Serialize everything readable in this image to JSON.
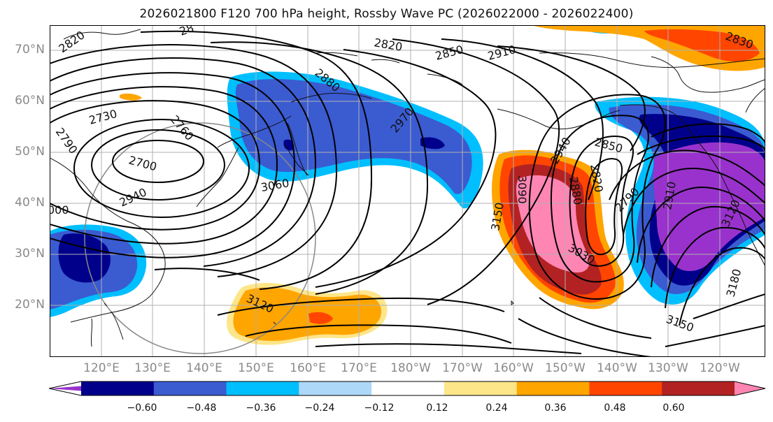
{
  "title": "2026021800 F120 700 hPa height, Rossby Wave PC (2026022000 - 2026022400)",
  "map": {
    "lat_labels": [
      "70°N",
      "60°N",
      "50°N",
      "40°N",
      "30°N",
      "20°N"
    ],
    "lon_labels": [
      "120°E",
      "130°E",
      "140°E",
      "150°E",
      "160°E",
      "170°E",
      "180°W",
      "170°W",
      "160°W",
      "150°W",
      "140°W",
      "130°W",
      "120°W"
    ],
    "contour_labels": [
      "2820",
      "28",
      "2820",
      "2850",
      "2910",
      "2880",
      "2970",
      "2760",
      "2730",
      "2790",
      "2700",
      "2940",
      "3060",
      "3120",
      "2940",
      "3090",
      "3150",
      "2880",
      "2820",
      "2850",
      "2790",
      "2910",
      "3030",
      "3120",
      "3150",
      "3180",
      "2830",
      "000"
    ]
  },
  "colorbar": {
    "ticks": [
      "−0.60",
      "−0.48",
      "−0.36",
      "−0.24",
      "−0.12",
      "0.12",
      "0.24",
      "0.36",
      "0.48",
      "0.60"
    ],
    "colors": [
      "#9932cc",
      "#00008b",
      "#3b5bd1",
      "#00bfff",
      "#add8f7",
      "#ffffff",
      "#fde68a",
      "#ffa500",
      "#ff4500",
      "#b22222",
      "#ff85b3"
    ]
  }
}
